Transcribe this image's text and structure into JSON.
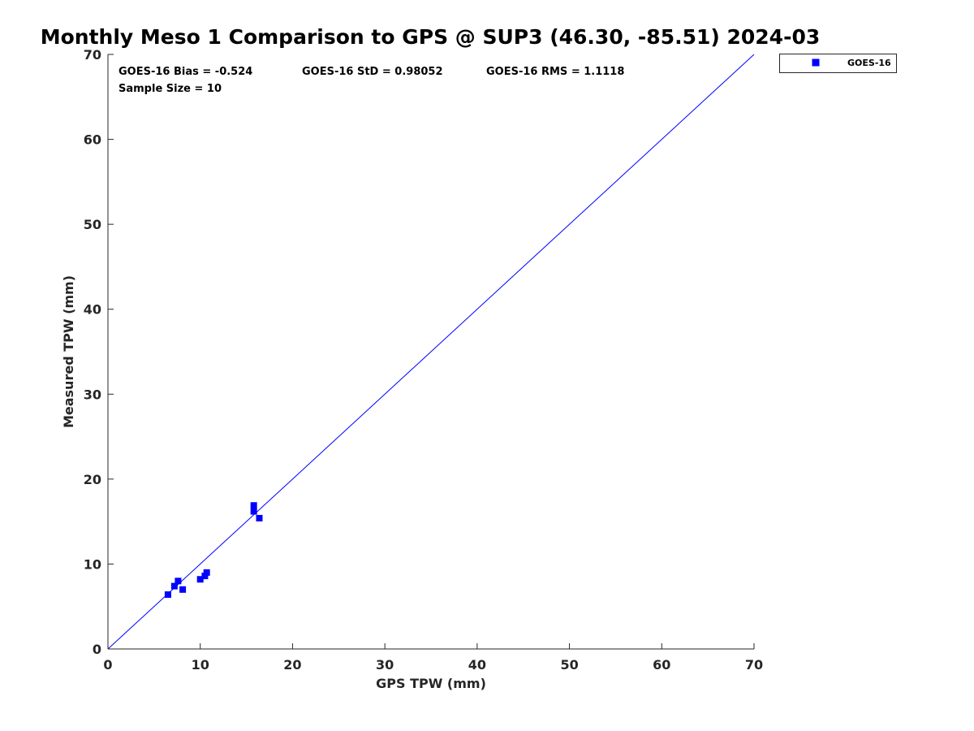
{
  "chart_data": {
    "type": "scatter",
    "title": "Monthly Meso 1 Comparison to GPS @ SUP3 (46.30, -85.51) 2024-03",
    "xlabel": "GPS TPW (mm)",
    "ylabel": "Measured TPW (mm)",
    "xlim": [
      0,
      70
    ],
    "ylim": [
      0,
      70
    ],
    "xticks": [
      "0",
      "10",
      "20",
      "30",
      "40",
      "50",
      "60",
      "70"
    ],
    "yticks": [
      "0",
      "10",
      "20",
      "30",
      "40",
      "50",
      "60",
      "70"
    ],
    "grid": false,
    "legend_position": "top-right-outside",
    "reference_line": {
      "type": "one-to-one",
      "color": "#0000ff"
    },
    "stats": {
      "bias": "GOES-16 Bias = -0.524",
      "std": "GOES-16 StD = 0.98052",
      "rms": "GOES-16 RMS = 1.1118",
      "sample": "Sample Size = 10"
    },
    "series": [
      {
        "name": "GOES-16",
        "color": "#0000ff",
        "marker": "square",
        "points": [
          {
            "x": 6.5,
            "y": 6.4
          },
          {
            "x": 7.2,
            "y": 7.4
          },
          {
            "x": 7.6,
            "y": 8.0
          },
          {
            "x": 8.1,
            "y": 7.0
          },
          {
            "x": 10.0,
            "y": 8.2
          },
          {
            "x": 10.5,
            "y": 8.6
          },
          {
            "x": 10.7,
            "y": 9.0
          },
          {
            "x": 15.8,
            "y": 16.2
          },
          {
            "x": 15.8,
            "y": 16.9
          },
          {
            "x": 16.4,
            "y": 15.4
          }
        ]
      }
    ]
  }
}
